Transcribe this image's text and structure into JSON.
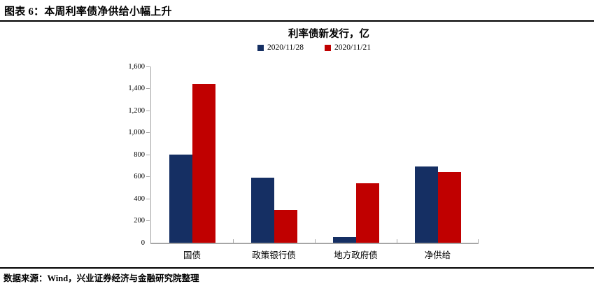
{
  "header": {
    "title": "图表 6：本周利率债净供给小幅上升"
  },
  "chart_data": {
    "type": "bar",
    "title": "利率债新发行，亿",
    "categories": [
      "国债",
      "政策银行债",
      "地方政府债",
      "净供给"
    ],
    "series": [
      {
        "name": "2020/11/28",
        "color": "#152F63",
        "values": [
          800,
          590,
          50,
          690
        ]
      },
      {
        "name": "2020/11/21",
        "color": "#C00000",
        "values": [
          1440,
          300,
          540,
          640
        ]
      }
    ],
    "ylim": [
      0,
      1600
    ],
    "ytick_step": 200,
    "xlabel": "",
    "ylabel": "",
    "grid": false,
    "legend_position": "top"
  },
  "footer": {
    "source": "数据来源：Wind，兴业证券经济与金融研究院整理"
  },
  "colors": {
    "axis": "#A6A6A6",
    "rule": "#000000",
    "background": "#FFFFFF"
  }
}
